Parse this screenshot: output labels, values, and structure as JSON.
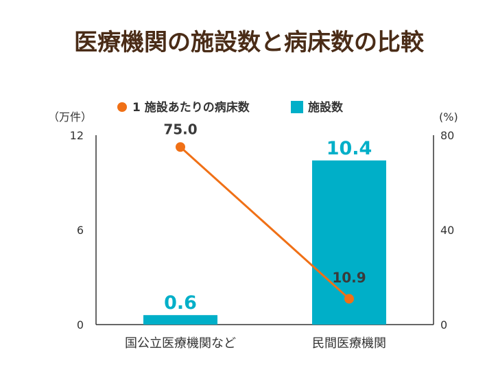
{
  "title": "医療機関の施設数と病床数の比較",
  "colors": {
    "bar": "#00afc8",
    "line": "#f07016",
    "title": "#4a2c17",
    "axis": "#333333"
  },
  "chart_data": {
    "type": "bar",
    "categories": [
      "国公立医療機関など",
      "民間医療機関"
    ],
    "left_axis": {
      "unit": "（万件）",
      "ticks": [
        "0",
        "6",
        "12"
      ],
      "ylim": [
        0,
        12
      ]
    },
    "right_axis": {
      "unit": "(%)",
      "ticks": [
        "0",
        "40",
        "80"
      ],
      "ylim": [
        0,
        80
      ]
    },
    "legend": [
      "1 施設あたりの病床数",
      "施設数"
    ],
    "series": [
      {
        "name": "施設数",
        "type": "bar",
        "axis": "left",
        "values": [
          0.6,
          10.4
        ],
        "labels": [
          "0.6",
          "10.4"
        ]
      },
      {
        "name": "1 施設あたりの病床数",
        "type": "line",
        "axis": "right",
        "values": [
          75.0,
          10.9
        ],
        "labels": [
          "75.0",
          "10.9"
        ]
      }
    ],
    "grid": false,
    "legend_position": "top"
  }
}
